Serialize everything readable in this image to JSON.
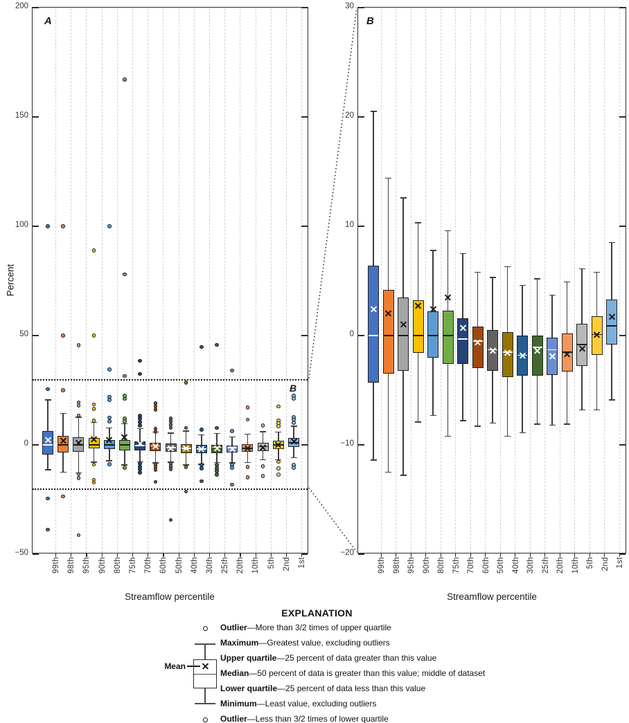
{
  "figure": {
    "background": "#ffffff"
  },
  "panel_letters": {
    "a": "A",
    "b": "B",
    "zoom_box_label": "B"
  },
  "legend": {
    "title": "EXPLANATION",
    "mean_label": "Mean",
    "items": [
      {
        "marker": "circle",
        "term": "Outlier",
        "desc": "More than 3/2 times of upper quartile"
      },
      {
        "marker": "cap-top",
        "term": "Maximum",
        "desc": "Greatest value, excluding outliers"
      },
      {
        "marker": "box-top",
        "term": "Upper quartile",
        "desc": "25 percent of data greater than this value"
      },
      {
        "marker": "median",
        "term": "Median",
        "desc": "50 percent of data is greater than this value; middle of dataset"
      },
      {
        "marker": "box-bottom",
        "term": "Lower quartile",
        "desc": "25 percent of data less than this value"
      },
      {
        "marker": "cap-bottom",
        "term": "Minimum",
        "desc": "Least value, excluding outliers"
      },
      {
        "marker": "circle",
        "term": "Outlier",
        "desc": "Less than 3/2 times of lower quartile"
      }
    ]
  },
  "chart_data": [
    {
      "type": "box",
      "panel": "A",
      "xlabel": "Streamflow percentile",
      "ylabel": "Percent",
      "ylim": [
        -50,
        200
      ],
      "yticks": [
        200,
        150,
        100,
        50,
        0,
        -50
      ],
      "grid": "vertical-dashed",
      "legend_position": "below",
      "categories": [
        "99th",
        "98th",
        "95th",
        "90th",
        "80th",
        "75th",
        "70th",
        "60th",
        "50th",
        "40th",
        "30th",
        "25th",
        "20th",
        "10th",
        "5th",
        "2nd",
        "1st"
      ],
      "colors": [
        "#4472C4",
        "#ED7D31",
        "#A5A5A5",
        "#FFC000",
        "#5B9BD5",
        "#70AD47",
        "#264478",
        "#9E480E",
        "#636363",
        "#997300",
        "#255E91",
        "#43682B",
        "#698ED0",
        "#F1975A",
        "#B7B7B7",
        "#FFCD33",
        "#7CAFDD"
      ],
      "marker_colors": [
        "#ffffff",
        "#1a1a1a",
        "#1a1a1a",
        "#1a1a1a",
        "#1a1a1a",
        "#1a1a1a",
        "#ffffff",
        "#ffffff",
        "#ffffff",
        "#ffffff",
        "#ffffff",
        "#ffffff",
        "#ffffff",
        "#1a1a1a",
        "#1a1a1a",
        "#1a1a1a",
        "#1a1a1a"
      ],
      "zoom_window": {
        "ymax": 30,
        "ymin": -20,
        "label": "B"
      },
      "boxes": [
        {
          "cat": "99th",
          "max": 20.5,
          "q3": 6.4,
          "med": 0.0,
          "q1": -4.3,
          "min": -11.4,
          "mean": 2.4,
          "outliers": [
            100,
            25.5,
            -24.5,
            -38.8
          ]
        },
        {
          "cat": "98th",
          "max": 14.4,
          "q3": 4.2,
          "med": 0.0,
          "q1": -3.5,
          "min": -12.5,
          "mean": 2.0,
          "outliers": [
            100,
            50,
            25,
            -23.6
          ]
        },
        {
          "cat": "95th",
          "max": 12.6,
          "q3": 3.5,
          "med": 0.0,
          "q1": -3.2,
          "min": -12.8,
          "mean": 1.0,
          "outliers": [
            45.5,
            19.5,
            18,
            13.5,
            -13.5,
            -15.2,
            -41.3
          ]
        },
        {
          "cat": "90th",
          "max": 10.3,
          "q3": 3.2,
          "med": 0.0,
          "q1": -1.6,
          "min": -7.9,
          "mean": 2.7,
          "outliers": [
            89,
            50,
            18.5,
            16.5,
            11,
            -9,
            -16,
            -17.2
          ]
        },
        {
          "cat": "80th",
          "max": 7.8,
          "q3": 2.2,
          "med": 0.0,
          "q1": -2.0,
          "min": -7.3,
          "mean": 2.4,
          "outliers": [
            100,
            34.5,
            22,
            20.5,
            12.5,
            10.8,
            -8.9
          ]
        },
        {
          "cat": "75th",
          "max": 9.6,
          "q3": 2.3,
          "med": 0.0,
          "q1": -2.6,
          "min": -9.2,
          "mean": 3.5,
          "outliers": [
            167,
            78,
            31.5,
            22.5,
            21,
            12,
            10.8,
            -10.5
          ]
        },
        {
          "cat": "70th",
          "max": 7.5,
          "q3": 1.6,
          "med": -0.3,
          "q1": -2.6,
          "min": -7.8,
          "mean": 0.7,
          "outliers": [
            38.5,
            32.5,
            13.3,
            12,
            10.5,
            8.9,
            -8.6,
            -10,
            -11.1,
            -12.7
          ]
        },
        {
          "cat": "60th",
          "max": 5.8,
          "q3": 0.8,
          "med": -0.5,
          "q1": -3.0,
          "min": -8.3,
          "mean": -0.6,
          "outliers": [
            19,
            17.5,
            16.2,
            7.4,
            6.1,
            -8.9,
            -10.2,
            -11.4,
            -16.9
          ]
        },
        {
          "cat": "50th",
          "max": 5.3,
          "q3": 0.5,
          "med": -1.3,
          "q1": -3.2,
          "min": -8.0,
          "mean": -1.4,
          "outliers": [
            12.1,
            10.8,
            9.2,
            7.7,
            -8.6,
            -9.9,
            -11.1,
            -34.4
          ]
        },
        {
          "cat": "40th",
          "max": 6.3,
          "q3": 0.3,
          "med": -1.5,
          "q1": -3.8,
          "min": -9.2,
          "mean": -1.6,
          "outliers": [
            28.5,
            7.7,
            -10.2,
            -21.4
          ]
        },
        {
          "cat": "30th",
          "max": 4.6,
          "q3": 0.0,
          "med": -1.8,
          "q1": -3.7,
          "min": -8.9,
          "mean": -1.8,
          "outliers": [
            44.8,
            6.9,
            -9.2,
            -10.8,
            -16.6
          ]
        },
        {
          "cat": "25th",
          "max": 5.2,
          "q3": 0.0,
          "med": -1.1,
          "q1": -3.7,
          "min": -8.1,
          "mean": -1.4,
          "outliers": [
            45.7,
            7.7,
            -9.2,
            -10.8,
            -12.1,
            -13.6
          ]
        },
        {
          "cat": "20th",
          "max": 3.7,
          "q3": -0.2,
          "med": -1.3,
          "q1": -3.6,
          "min": -8.2,
          "mean": -1.9,
          "outliers": [
            34,
            6.4,
            -9.2,
            -10.5,
            -18.2
          ]
        },
        {
          "cat": "10th",
          "max": 4.9,
          "q3": 0.2,
          "med": -1.5,
          "q1": -3.3,
          "min": -8.1,
          "mean": -1.7,
          "outliers": [
            17,
            11.5,
            -10.2,
            -14.9
          ]
        },
        {
          "cat": "5th",
          "max": 6.1,
          "q3": 1.1,
          "med": -0.8,
          "q1": -2.8,
          "min": -6.8,
          "mean": -1.2,
          "outliers": [
            8.9,
            -9.9,
            -14.3
          ]
        },
        {
          "cat": "2nd",
          "max": 5.8,
          "q3": 1.8,
          "med": 0.1,
          "q1": -1.8,
          "min": -6.8,
          "mean": 0.1,
          "outliers": [
            17.5,
            11.1,
            9.9,
            8.6,
            -7.7,
            -10.8,
            -13.6
          ]
        },
        {
          "cat": "1st",
          "max": 8.5,
          "q3": 3.3,
          "med": 0.9,
          "q1": -0.8,
          "min": -5.9,
          "mean": 1.7,
          "outliers": [
            22.5,
            21.2,
            12.7,
            11.5,
            10.2,
            -9.2,
            -10.5
          ]
        }
      ]
    },
    {
      "type": "box",
      "panel": "B",
      "xlabel": "Streamflow percentile",
      "ylabel": "",
      "ylim": [
        -20,
        30
      ],
      "yticks": [
        30,
        20,
        10,
        0,
        -10,
        -20
      ],
      "grid": "vertical-dashed",
      "note": "zoomed view of panel A between -20 and 30 percent; outliers not drawn",
      "categories": [
        "99th",
        "98th",
        "95th",
        "90th",
        "80th",
        "75th",
        "70th",
        "60th",
        "50th",
        "40th",
        "30th",
        "25th",
        "20th",
        "10th",
        "5th",
        "2nd",
        "1st"
      ],
      "colors": [
        "#4472C4",
        "#ED7D31",
        "#A5A5A5",
        "#FFC000",
        "#5B9BD5",
        "#70AD47",
        "#264478",
        "#9E480E",
        "#636363",
        "#997300",
        "#255E91",
        "#43682B",
        "#698ED0",
        "#F1975A",
        "#B7B7B7",
        "#FFCD33",
        "#7CAFDD"
      ],
      "marker_colors": [
        "#ffffff",
        "#1a1a1a",
        "#1a1a1a",
        "#1a1a1a",
        "#1a1a1a",
        "#1a1a1a",
        "#ffffff",
        "#ffffff",
        "#ffffff",
        "#ffffff",
        "#ffffff",
        "#ffffff",
        "#ffffff",
        "#1a1a1a",
        "#1a1a1a",
        "#1a1a1a",
        "#1a1a1a"
      ],
      "boxes": [
        {
          "cat": "99th",
          "max": 20.5,
          "q3": 6.4,
          "med": 0.0,
          "q1": -4.3,
          "min": -11.4,
          "mean": 2.4
        },
        {
          "cat": "98th",
          "max": 14.4,
          "q3": 4.2,
          "med": 0.0,
          "q1": -3.5,
          "min": -12.5,
          "mean": 2.0
        },
        {
          "cat": "95th",
          "max": 12.6,
          "q3": 3.5,
          "med": 0.0,
          "q1": -3.2,
          "min": -12.8,
          "mean": 1.0
        },
        {
          "cat": "90th",
          "max": 10.3,
          "q3": 3.2,
          "med": 0.0,
          "q1": -1.6,
          "min": -7.9,
          "mean": 2.7
        },
        {
          "cat": "80th",
          "max": 7.8,
          "q3": 2.2,
          "med": 0.0,
          "q1": -2.0,
          "min": -7.3,
          "mean": 2.4
        },
        {
          "cat": "75th",
          "max": 9.6,
          "q3": 2.3,
          "med": 0.0,
          "q1": -2.6,
          "min": -9.2,
          "mean": 3.5
        },
        {
          "cat": "70th",
          "max": 7.5,
          "q3": 1.6,
          "med": -0.3,
          "q1": -2.6,
          "min": -7.8,
          "mean": 0.7
        },
        {
          "cat": "60th",
          "max": 5.8,
          "q3": 0.8,
          "med": -0.5,
          "q1": -3.0,
          "min": -8.3,
          "mean": -0.6
        },
        {
          "cat": "50th",
          "max": 5.3,
          "q3": 0.5,
          "med": -1.3,
          "q1": -3.2,
          "min": -8.0,
          "mean": -1.4
        },
        {
          "cat": "40th",
          "max": 6.3,
          "q3": 0.3,
          "med": -1.5,
          "q1": -3.8,
          "min": -9.2,
          "mean": -1.6
        },
        {
          "cat": "30th",
          "max": 4.6,
          "q3": 0.0,
          "med": -1.8,
          "q1": -3.7,
          "min": -8.9,
          "mean": -1.8
        },
        {
          "cat": "25th",
          "max": 5.2,
          "q3": 0.0,
          "med": -1.1,
          "q1": -3.7,
          "min": -8.1,
          "mean": -1.4
        },
        {
          "cat": "20th",
          "max": 3.7,
          "q3": -0.2,
          "med": -1.3,
          "q1": -3.6,
          "min": -8.2,
          "mean": -1.9
        },
        {
          "cat": "10th",
          "max": 4.9,
          "q3": 0.2,
          "med": -1.5,
          "q1": -3.3,
          "min": -8.1,
          "mean": -1.7
        },
        {
          "cat": "5th",
          "max": 6.1,
          "q3": 1.1,
          "med": -0.8,
          "q1": -2.8,
          "min": -6.8,
          "mean": -1.2
        },
        {
          "cat": "2nd",
          "max": 5.8,
          "q3": 1.8,
          "med": 0.1,
          "q1": -1.8,
          "min": -6.8,
          "mean": 0.1
        },
        {
          "cat": "1st",
          "max": 8.5,
          "q3": 3.3,
          "med": 0.9,
          "q1": -0.8,
          "min": -5.9,
          "mean": 1.7
        }
      ]
    }
  ]
}
